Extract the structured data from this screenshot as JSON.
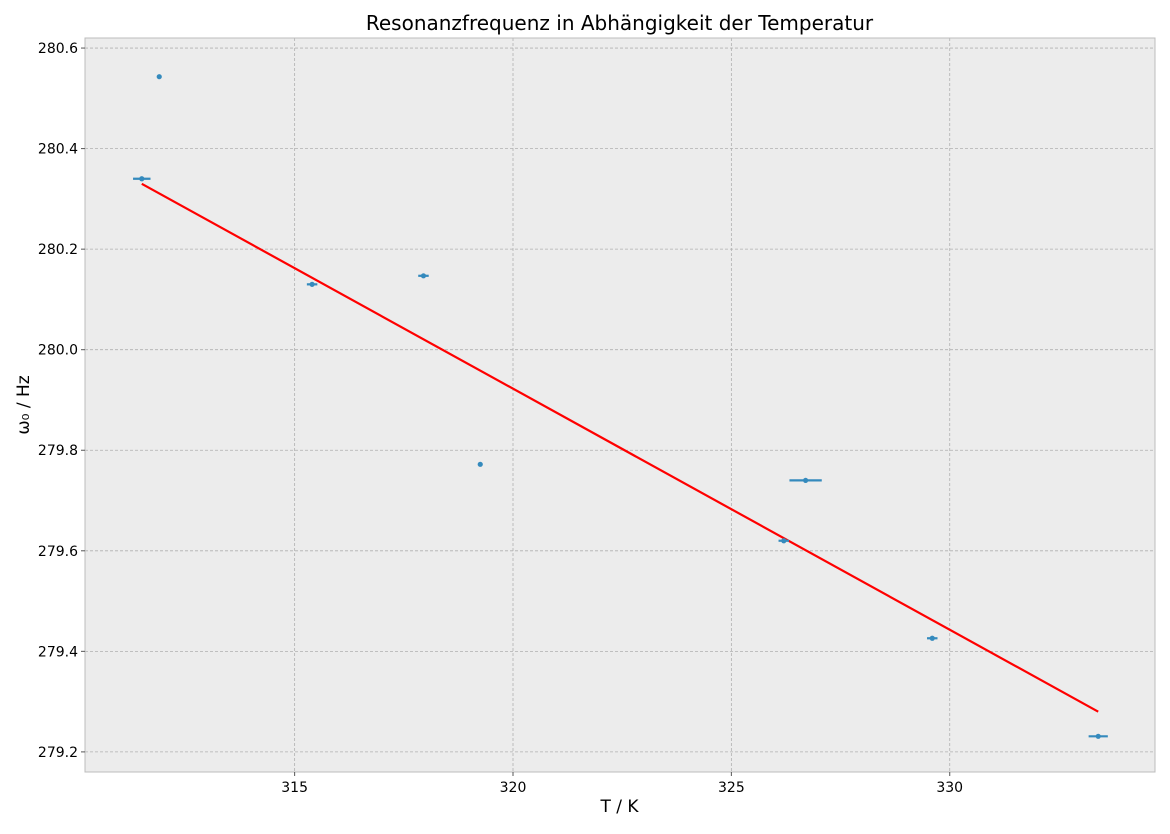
{
  "chart_data": {
    "type": "scatter",
    "title": "Resonanzfrequenz in Abhängigkeit der Temperatur",
    "xlabel": "T / K",
    "ylabel": "ω₀ / Hz",
    "xlim": [
      310.2,
      334.7
    ],
    "ylim": [
      279.16,
      280.62
    ],
    "grid": true,
    "background": "#ececec",
    "x_ticks": [
      315,
      320,
      325,
      330
    ],
    "y_ticks": [
      279.2,
      279.4,
      279.6,
      279.8,
      280.0,
      280.2,
      280.4,
      280.6
    ],
    "y_tick_labels": [
      "279.2",
      "279.4",
      "279.6",
      "279.8",
      "280.0",
      "280.2",
      "280.4",
      "280.6"
    ],
    "series": [
      {
        "kind": "errorbar",
        "color": "#348abd",
        "points": [
          {
            "x": 311.5,
            "y": 280.34,
            "xerr": 0.2
          },
          {
            "x": 311.9,
            "y": 280.543,
            "xerr": 0.03
          },
          {
            "x": 315.4,
            "y": 280.13,
            "xerr": 0.12
          },
          {
            "x": 317.95,
            "y": 280.147,
            "xerr": 0.12
          },
          {
            "x": 319.25,
            "y": 279.772,
            "xerr": 0.05
          },
          {
            "x": 326.2,
            "y": 279.62,
            "xerr": 0.12
          },
          {
            "x": 326.7,
            "y": 279.74,
            "xerr": 0.37
          },
          {
            "x": 329.6,
            "y": 279.426,
            "xerr": 0.12
          },
          {
            "x": 333.4,
            "y": 279.231,
            "xerr": 0.22
          }
        ]
      },
      {
        "kind": "line",
        "color": "#ff0000",
        "points": [
          {
            "x": 311.5,
            "y": 280.33
          },
          {
            "x": 333.4,
            "y": 279.28
          }
        ]
      }
    ]
  }
}
